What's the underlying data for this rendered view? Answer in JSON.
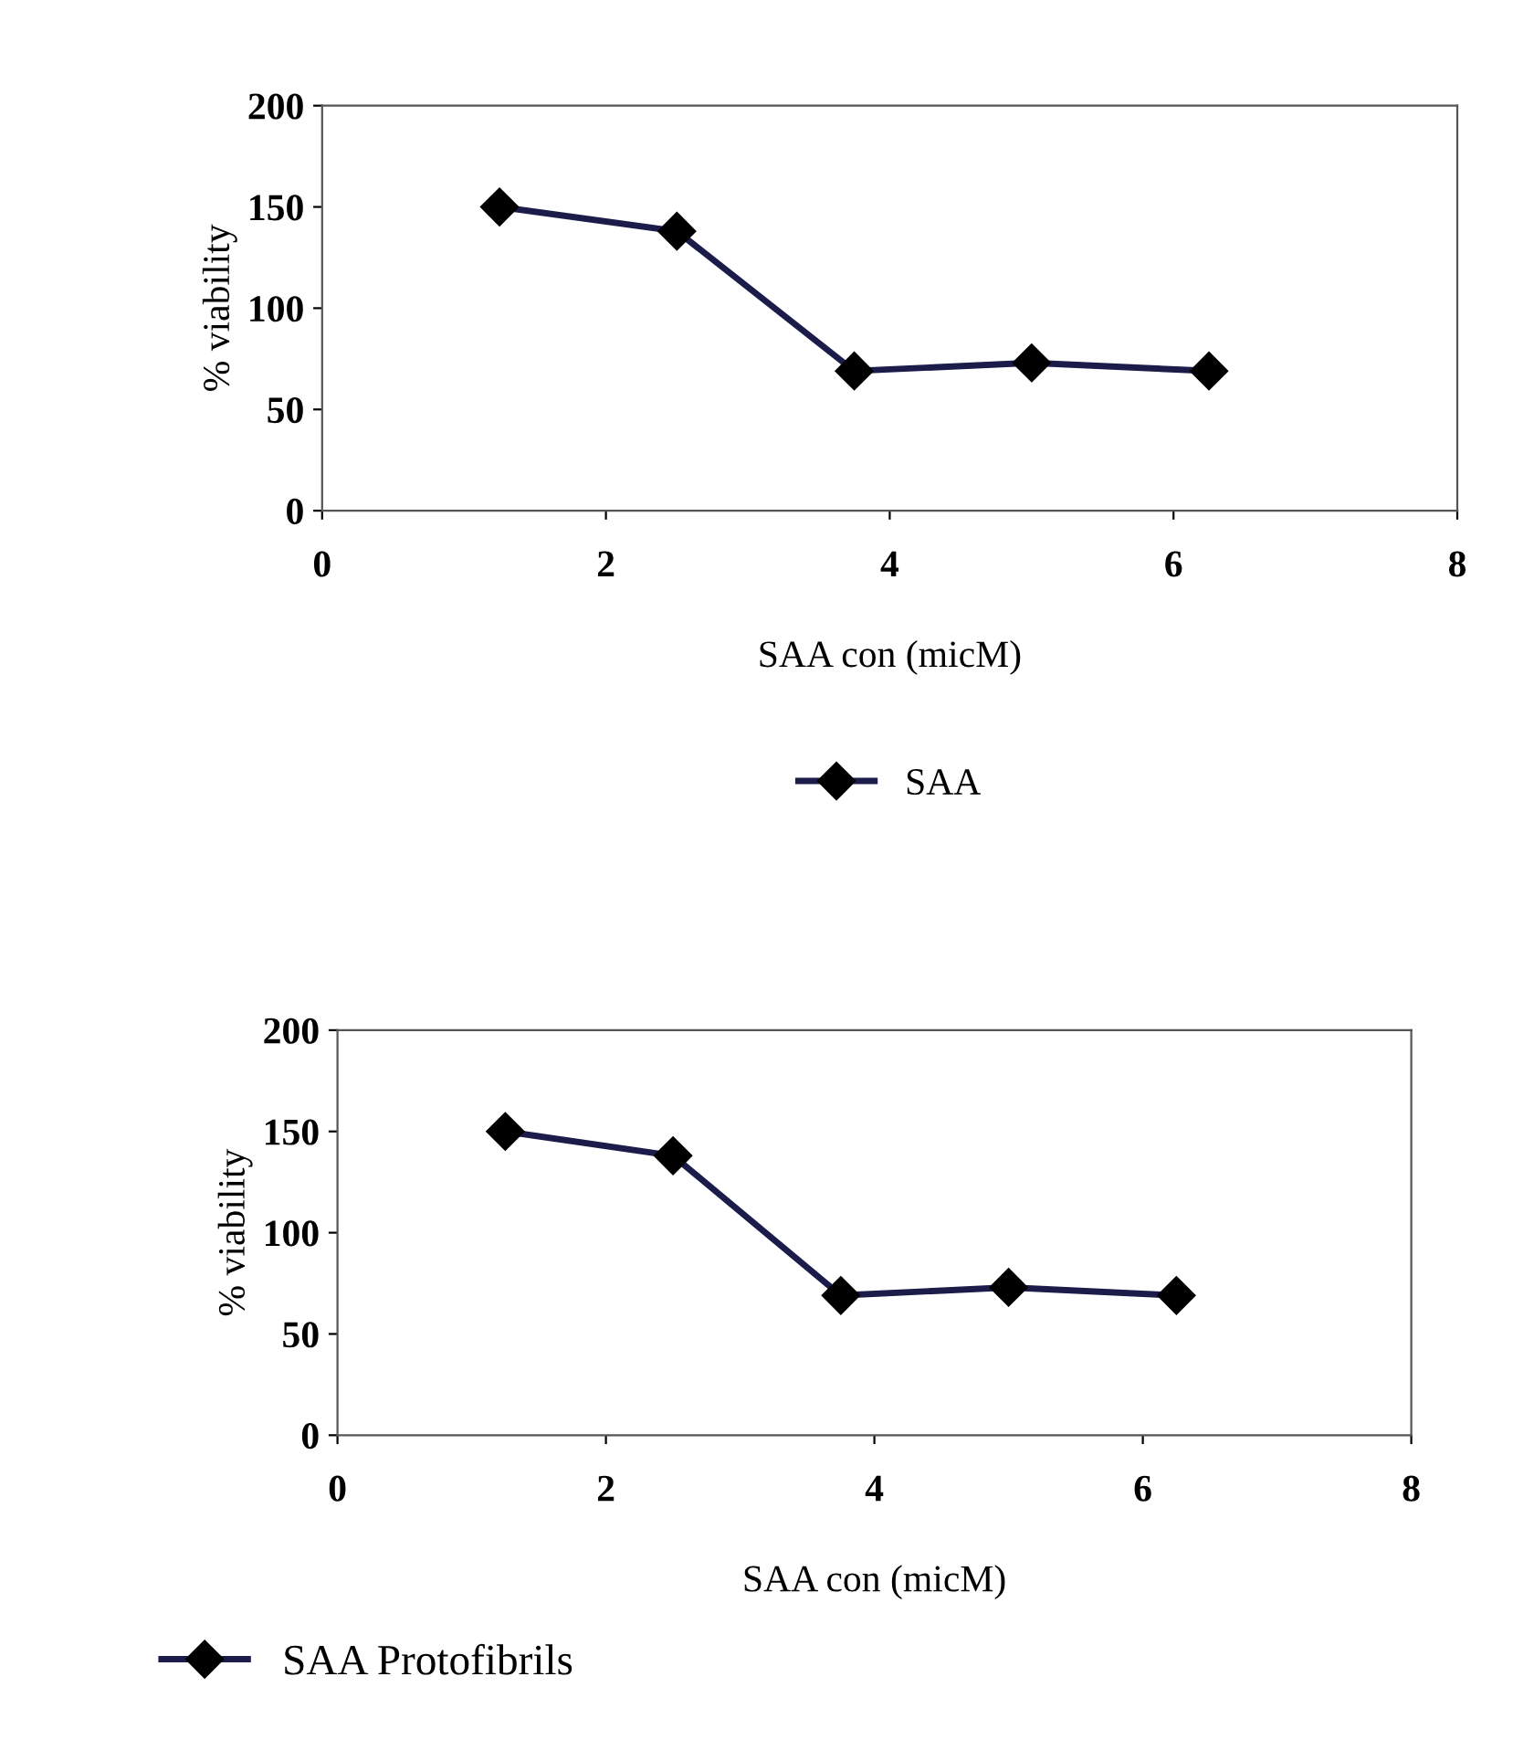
{
  "chart_data": [
    {
      "type": "line",
      "xlabel": "SAA con (micM)",
      "ylabel": "% viability",
      "x": [
        1.25,
        2.5,
        3.75,
        5,
        6.25
      ],
      "series": [
        {
          "name": "SAA",
          "color": "#1c1c4a",
          "values": [
            150,
            138,
            69,
            73,
            69
          ]
        }
      ],
      "xlim": [
        0,
        8
      ],
      "ylim": [
        0,
        200
      ],
      "xticks": [
        0,
        2,
        4,
        6,
        8
      ],
      "yticks": [
        0,
        50,
        100,
        150,
        200
      ],
      "grid": false,
      "legend": "bottom",
      "marker": "diamond",
      "line_style": "solid"
    },
    {
      "type": "line",
      "xlabel": "SAA con (micM)",
      "ylabel": "% viability",
      "x": [
        1.25,
        2.5,
        3.75,
        5,
        6.25
      ],
      "series": [
        {
          "name": "SAA Protofibrils",
          "color": "#1c1c4a",
          "values": [
            150,
            138,
            69,
            73,
            69
          ]
        }
      ],
      "xlim": [
        0,
        8
      ],
      "ylim": [
        0,
        200
      ],
      "xticks": [
        0,
        2,
        4,
        6,
        8
      ],
      "yticks": [
        0,
        50,
        100,
        150,
        200
      ],
      "grid": false,
      "legend": "bottom left",
      "marker": "diamond",
      "line_style": "solid"
    }
  ]
}
